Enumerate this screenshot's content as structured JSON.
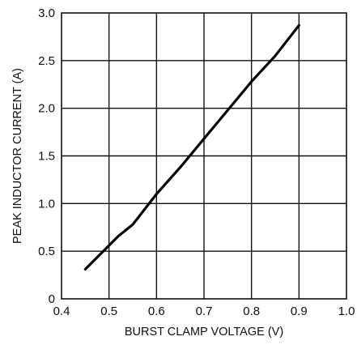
{
  "chart_data": {
    "type": "line",
    "title": "",
    "xlabel": "BURST CLAMP VOLTAGE (V)",
    "ylabel": "PEAK INDUCTOR CURRENT (A)",
    "xlim": [
      0.4,
      1.0
    ],
    "ylim": [
      0,
      3.0
    ],
    "x_ticks": [
      0.4,
      0.5,
      0.6,
      0.7,
      0.8,
      0.9,
      1.0
    ],
    "y_ticks": [
      0,
      0.5,
      1.0,
      1.5,
      2.0,
      2.5,
      3.0
    ],
    "x_tick_labels": [
      "0.4",
      "0.5",
      "0.6",
      "0.7",
      "0.8",
      "0.9",
      "1.0"
    ],
    "y_tick_labels": [
      "0",
      "0.5",
      "1.0",
      "1.5",
      "2.0",
      "2.5",
      "3.0"
    ],
    "grid": true,
    "legend": "none",
    "series": [
      {
        "x": [
          0.45,
          0.52,
          0.55,
          0.6,
          0.65,
          0.7,
          0.75,
          0.8,
          0.85,
          0.9
        ],
        "y": [
          0.31,
          0.66,
          0.78,
          1.1,
          1.38,
          1.68,
          1.98,
          2.28,
          2.55,
          2.87
        ]
      }
    ]
  }
}
